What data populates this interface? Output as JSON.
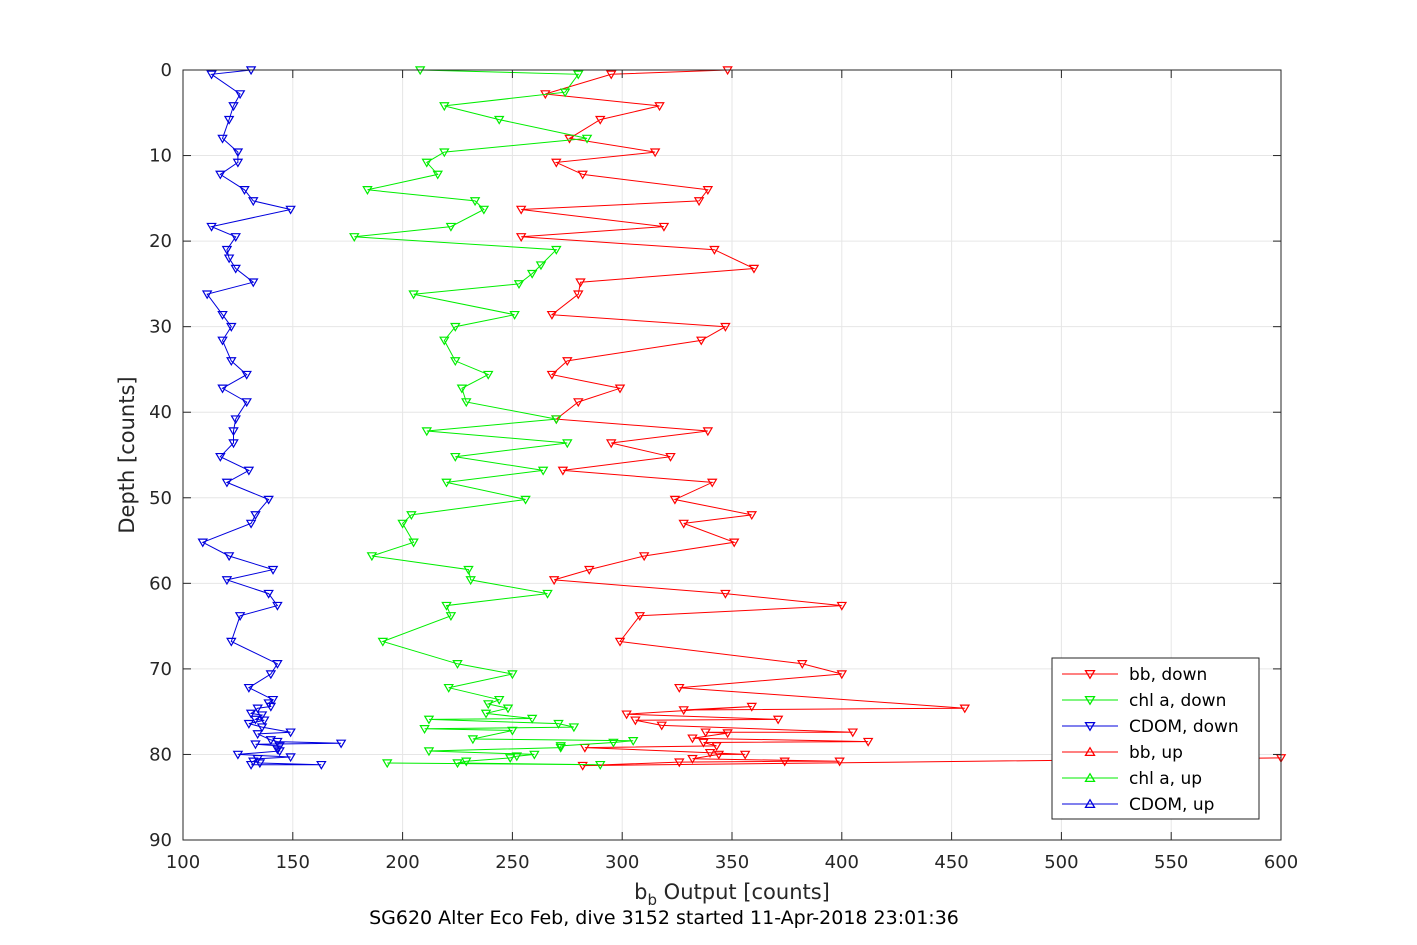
{
  "chart_data": {
    "type": "line",
    "xlabel": "b",
    "xlabel_sub": "b",
    "xlabel_rest": " Output [counts]",
    "ylabel": "Depth [counts]",
    "caption": "SG620 Alter Eco Feb, dive 3152 started 11-Apr-2018 23:01:36",
    "xlim": [
      100,
      600
    ],
    "ylim": [
      0,
      90
    ],
    "y_reversed": true,
    "grid": true,
    "legend_position": "bottom-right",
    "xticks": [
      100,
      150,
      200,
      250,
      300,
      350,
      400,
      450,
      500,
      550,
      600
    ],
    "yticks": [
      0,
      10,
      20,
      30,
      40,
      50,
      60,
      70,
      80,
      90
    ],
    "series": [
      {
        "name": "bb, down",
        "color": "#ff0000",
        "marker": "triangle-down",
        "points": [
          [
            348,
            0
          ],
          [
            295,
            0.5
          ],
          [
            265,
            2.8
          ],
          [
            317,
            4.2
          ],
          [
            290,
            5.8
          ],
          [
            276,
            8
          ],
          [
            315,
            9.6
          ],
          [
            270,
            10.8
          ],
          [
            282,
            12.2
          ],
          [
            339,
            14
          ],
          [
            335,
            15.3
          ],
          [
            254,
            16.3
          ],
          [
            319,
            18.3
          ],
          [
            254,
            19.5
          ],
          [
            342,
            21
          ],
          [
            360,
            23.2
          ],
          [
            281,
            24.8
          ],
          [
            280,
            26.2
          ],
          [
            268,
            28.6
          ],
          [
            347,
            30
          ],
          [
            336,
            31.6
          ],
          [
            275,
            34
          ],
          [
            268,
            35.6
          ],
          [
            299,
            37.2
          ],
          [
            280,
            38.8
          ],
          [
            270,
            40.8
          ],
          [
            339,
            42.2
          ],
          [
            295,
            43.6
          ],
          [
            322,
            45.2
          ],
          [
            273,
            46.8
          ],
          [
            341,
            48.2
          ],
          [
            324,
            50.2
          ],
          [
            359,
            52
          ],
          [
            328,
            53
          ],
          [
            351,
            55.2
          ],
          [
            310,
            56.8
          ],
          [
            285,
            58.4
          ],
          [
            269,
            59.6
          ],
          [
            347,
            61.2
          ],
          [
            400,
            62.6
          ],
          [
            308,
            63.8
          ],
          [
            299,
            66.8
          ],
          [
            382,
            69.4
          ],
          [
            400,
            70.6
          ],
          [
            326,
            72.2
          ],
          [
            456,
            74.6
          ],
          [
            328,
            74.8
          ],
          [
            359,
            74.4
          ],
          [
            302,
            75.3
          ],
          [
            371,
            75.9
          ],
          [
            306,
            76
          ],
          [
            318,
            76.6
          ],
          [
            405,
            77.4
          ],
          [
            338,
            77.4
          ],
          [
            348,
            77.5
          ],
          [
            332,
            78.1
          ],
          [
            412,
            78.5
          ],
          [
            337,
            78.6
          ],
          [
            343,
            79
          ],
          [
            283,
            79.2
          ],
          [
            340,
            79.8
          ],
          [
            356,
            80
          ],
          [
            344,
            80
          ],
          [
            332,
            80.5
          ],
          [
            399,
            80.8
          ],
          [
            374,
            80.8
          ],
          [
            326,
            80.9
          ],
          [
            282,
            81.3
          ],
          [
            600,
            80.4
          ]
        ]
      },
      {
        "name": "chl a, down",
        "color": "#00ee00",
        "marker": "triangle-down",
        "points": [
          [
            208,
            0
          ],
          [
            280,
            0.5
          ],
          [
            274,
            2.6
          ],
          [
            219,
            4.2
          ],
          [
            244,
            5.8
          ],
          [
            284,
            8
          ],
          [
            219,
            9.6
          ],
          [
            211,
            10.8
          ],
          [
            216,
            12.2
          ],
          [
            184,
            14
          ],
          [
            233,
            15.3
          ],
          [
            237,
            16.3
          ],
          [
            222,
            18.3
          ],
          [
            178,
            19.5
          ],
          [
            270,
            21
          ],
          [
            263,
            22.8
          ],
          [
            259,
            23.8
          ],
          [
            253,
            25
          ],
          [
            205,
            26.2
          ],
          [
            251,
            28.6
          ],
          [
            224,
            30
          ],
          [
            219,
            31.6
          ],
          [
            224,
            34
          ],
          [
            239,
            35.6
          ],
          [
            227,
            37.2
          ],
          [
            229,
            38.8
          ],
          [
            270,
            40.8
          ],
          [
            211,
            42.2
          ],
          [
            275,
            43.6
          ],
          [
            224,
            45.2
          ],
          [
            264,
            46.8
          ],
          [
            220,
            48.2
          ],
          [
            256,
            50.2
          ],
          [
            204,
            52
          ],
          [
            200,
            53
          ],
          [
            205,
            55.2
          ],
          [
            186,
            56.8
          ],
          [
            230,
            58.4
          ],
          [
            231,
            59.6
          ],
          [
            266,
            61.2
          ],
          [
            220,
            62.6
          ],
          [
            222,
            63.8
          ],
          [
            191,
            66.8
          ],
          [
            225,
            69.4
          ],
          [
            250,
            70.6
          ],
          [
            221,
            72.2
          ],
          [
            244,
            73.6
          ],
          [
            239,
            74.1
          ],
          [
            248,
            74.6
          ],
          [
            238,
            75.2
          ],
          [
            259,
            75.8
          ],
          [
            212,
            75.9
          ],
          [
            271,
            76.4
          ],
          [
            278,
            76.8
          ],
          [
            210,
            77
          ],
          [
            250,
            77.2
          ],
          [
            232,
            78.2
          ],
          [
            305,
            78.4
          ],
          [
            296,
            78.6
          ],
          [
            272,
            79
          ],
          [
            272,
            79.2
          ],
          [
            212,
            79.6
          ],
          [
            260,
            80
          ],
          [
            252,
            80.2
          ],
          [
            249,
            80.4
          ],
          [
            229,
            80.8
          ],
          [
            225,
            81
          ],
          [
            290,
            81.2
          ],
          [
            193,
            81
          ]
        ]
      },
      {
        "name": "CDOM, down",
        "color": "#0000dd",
        "marker": "triangle-down",
        "points": [
          [
            131,
            0
          ],
          [
            113,
            0.5
          ],
          [
            126,
            2.8
          ],
          [
            123,
            4.2
          ],
          [
            121,
            5.8
          ],
          [
            118,
            8
          ],
          [
            125,
            9.6
          ],
          [
            125,
            10.8
          ],
          [
            117,
            12.2
          ],
          [
            128,
            14
          ],
          [
            132,
            15.3
          ],
          [
            149,
            16.3
          ],
          [
            113,
            18.3
          ],
          [
            124,
            19.5
          ],
          [
            120,
            21
          ],
          [
            121,
            22
          ],
          [
            124,
            23.2
          ],
          [
            132,
            24.8
          ],
          [
            111,
            26.2
          ],
          [
            118,
            28.6
          ],
          [
            122,
            30
          ],
          [
            118,
            31.6
          ],
          [
            122,
            34
          ],
          [
            129,
            35.6
          ],
          [
            118,
            37.2
          ],
          [
            129,
            38.8
          ],
          [
            124,
            40.8
          ],
          [
            123,
            42.2
          ],
          [
            123,
            43.6
          ],
          [
            117,
            45.2
          ],
          [
            130,
            46.8
          ],
          [
            120,
            48.2
          ],
          [
            139,
            50.2
          ],
          [
            133,
            52
          ],
          [
            131,
            53
          ],
          [
            109,
            55.2
          ],
          [
            121,
            56.8
          ],
          [
            141,
            58.4
          ],
          [
            120,
            59.6
          ],
          [
            139,
            61.2
          ],
          [
            143,
            62.6
          ],
          [
            126,
            63.8
          ],
          [
            122,
            66.8
          ],
          [
            143,
            69.4
          ],
          [
            140,
            70.6
          ],
          [
            130,
            72.2
          ],
          [
            141,
            73.6
          ],
          [
            139,
            74
          ],
          [
            140,
            74.4
          ],
          [
            134,
            74.6
          ],
          [
            131,
            75.2
          ],
          [
            136,
            75.4
          ],
          [
            133,
            75.9
          ],
          [
            137,
            76
          ],
          [
            130,
            76.4
          ],
          [
            136,
            76.8
          ],
          [
            149,
            77.4
          ],
          [
            134,
            77.6
          ],
          [
            140,
            78.3
          ],
          [
            143,
            78.5
          ],
          [
            172,
            78.7
          ],
          [
            133,
            78.8
          ],
          [
            144,
            79
          ],
          [
            143,
            79.4
          ],
          [
            144,
            79.6
          ],
          [
            125,
            80
          ],
          [
            149,
            80.3
          ],
          [
            134,
            80.5
          ],
          [
            132,
            80.8
          ],
          [
            135,
            81
          ],
          [
            163,
            81.2
          ],
          [
            131,
            81.2
          ]
        ]
      },
      {
        "name": "bb, up",
        "color": "#ff0000",
        "marker": "triangle-up",
        "points": []
      },
      {
        "name": "chl a, up",
        "color": "#00ee00",
        "marker": "triangle-up",
        "points": []
      },
      {
        "name": "CDOM, up",
        "color": "#0000dd",
        "marker": "triangle-up",
        "points": []
      }
    ]
  }
}
